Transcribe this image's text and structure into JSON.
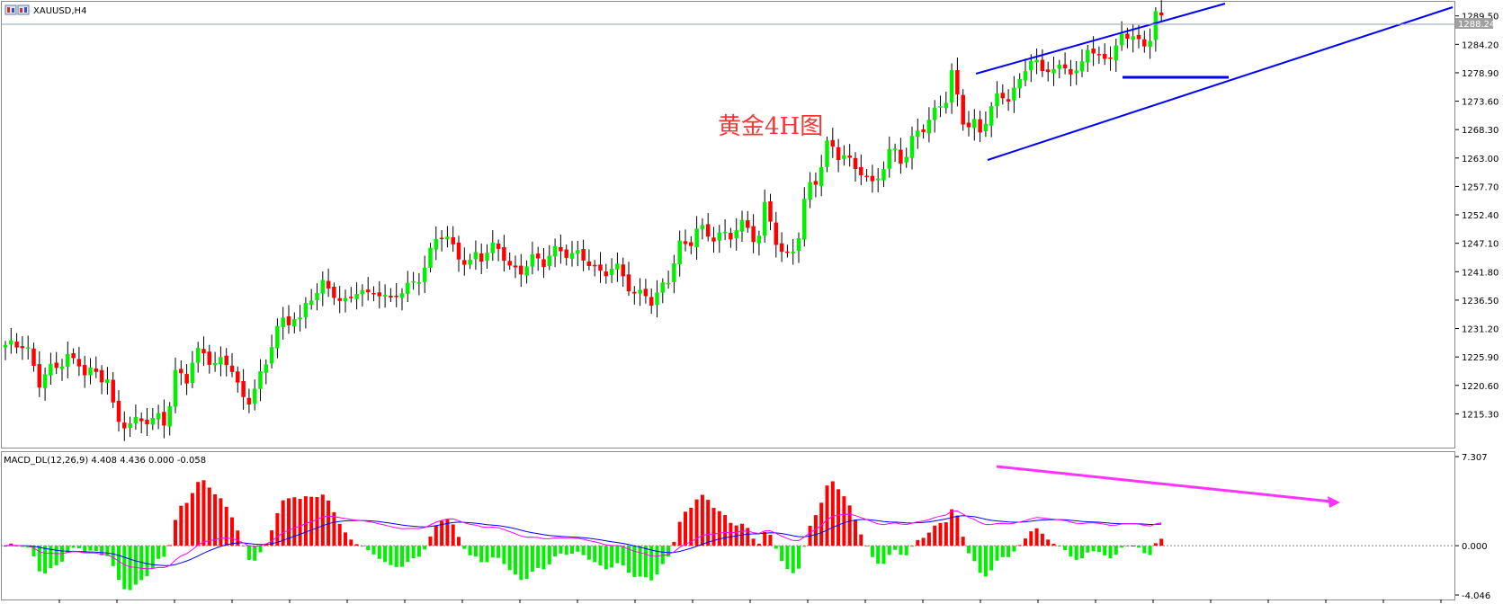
{
  "header": {
    "symbol": "XAUUSD,H4"
  },
  "price_panel": {
    "current_price_label": "1288.24",
    "annotation": "黄金4H图",
    "colors": {
      "up": "#00f000",
      "down": "#ff0000",
      "wick": "#000000",
      "channel": "#0000ff",
      "annotation": "#ff3333"
    }
  },
  "macd_panel": {
    "label": "MACD_DL(12,26,9) 4.408 4.436 0.000 -0.058",
    "colors": {
      "pos": "#ff0000",
      "neg": "#00f000",
      "line1": "#0000ff",
      "line2": "#ff00ff",
      "arrow": "#ff33ff"
    }
  },
  "chart_data": [
    {
      "type": "candlestick",
      "symbol": "XAUUSD",
      "timeframe": "H4",
      "ylim": [
        1210.0,
        1291.8
      ],
      "y_ticks": [
        "1289.50",
        "1284.20",
        "1278.90",
        "1273.60",
        "1268.30",
        "1263.00",
        "1257.70",
        "1252.40",
        "1247.10",
        "1241.80",
        "1236.50",
        "1231.20",
        "1225.90",
        "1220.60",
        "1215.30"
      ],
      "current_price": 1288.24,
      "path": [
        1228.1,
        1227.7,
        1227.3,
        1228.3,
        1224,
        1220.7,
        1223.8,
        1224.5,
        1223.9,
        1227.5,
        1224.9,
        1223.9,
        1222.6,
        1223.2,
        1220.5,
        1223.5,
        1217.2,
        1213.4,
        1214.3,
        1214.1,
        1213.8,
        1213.9,
        1213.7,
        1214,
        1212.5,
        1223,
        1222.8,
        1222.3,
        1226.5,
        1227.5,
        1225.8,
        1224.2,
        1224.4,
        1224.1,
        1223.3,
        1218.4,
        1217.3,
        1220.8,
        1223.1,
        1225,
        1230.9,
        1232.2,
        1231.1,
        1233.2,
        1232.3,
        1236.3,
        1237.9,
        1240.4,
        1238.9,
        1238.1,
        1236.2,
        1235.4,
        1238,
        1237.6,
        1236.8,
        1238.4,
        1238.1,
        1236.4,
        1238.5,
        1238.4,
        1238.9,
        1239.9,
        1240.4,
        1243.9,
        1247.8,
        1248.8,
        1247.8,
        1246.2,
        1244.5,
        1243.2,
        1245.2,
        1244.1,
        1245.1,
        1246.3,
        1244.9,
        1242.6,
        1242.2,
        1242.6,
        1244.9,
        1244.5,
        1243.4,
        1244.6,
        1245.2,
        1245.1,
        1244.5,
        1245.1,
        1244.8,
        1244,
        1242.4,
        1241.7,
        1242.6,
        1242.1,
        1240.2,
        1237.9,
        1236.6,
        1238.3,
        1236.5,
        1237.9,
        1240.2,
        1241.2,
        1246.7,
        1246.3,
        1246.9,
        1249.5,
        1249,
        1248.1,
        1249,
        1249.1,
        1249.1,
        1250.8,
        1250.7,
        1248.1,
        1247.1,
        1253.4,
        1250.4,
        1246.2,
        1244.6,
        1246.1,
        1248.9,
        1255.8,
        1259,
        1258.4,
        1264.7,
        1264.8,
        1263.1,
        1263.2,
        1262.1,
        1261.8,
        1259.7,
        1258.5,
        1260.2,
        1261.3,
        1265,
        1262.3,
        1262.5,
        1266.6,
        1269.4,
        1269,
        1271.7,
        1273.6,
        1273.7,
        1279.3,
        1271.3,
        1267.8,
        1269.3,
        1268,
        1270.9,
        1273.5,
        1276,
        1274.2,
        1275.1,
        1277.1,
        1280.2,
        1280.9,
        1278.7,
        1280.1,
        1279.6,
        1280.2,
        1281.2,
        1278.4,
        1279.6,
        1283.6,
        1282.1,
        1280.4,
        1281.5,
        1283.3,
        1285.6,
        1286.3,
        1287.2,
        1283.8,
        1283,
        1290.7,
        1288.2
      ],
      "candle_count": 205
    },
    {
      "type": "macd",
      "title": "MACD_DL(12,26,9)",
      "values": {
        "macd": 4.408,
        "signal": 4.436,
        "histogram": 0.0,
        "extra": -0.058
      },
      "ylim": [
        -4.046,
        7.307
      ],
      "y_ticks": [
        "7.307",
        "0.000",
        "-4.046"
      ]
    }
  ]
}
